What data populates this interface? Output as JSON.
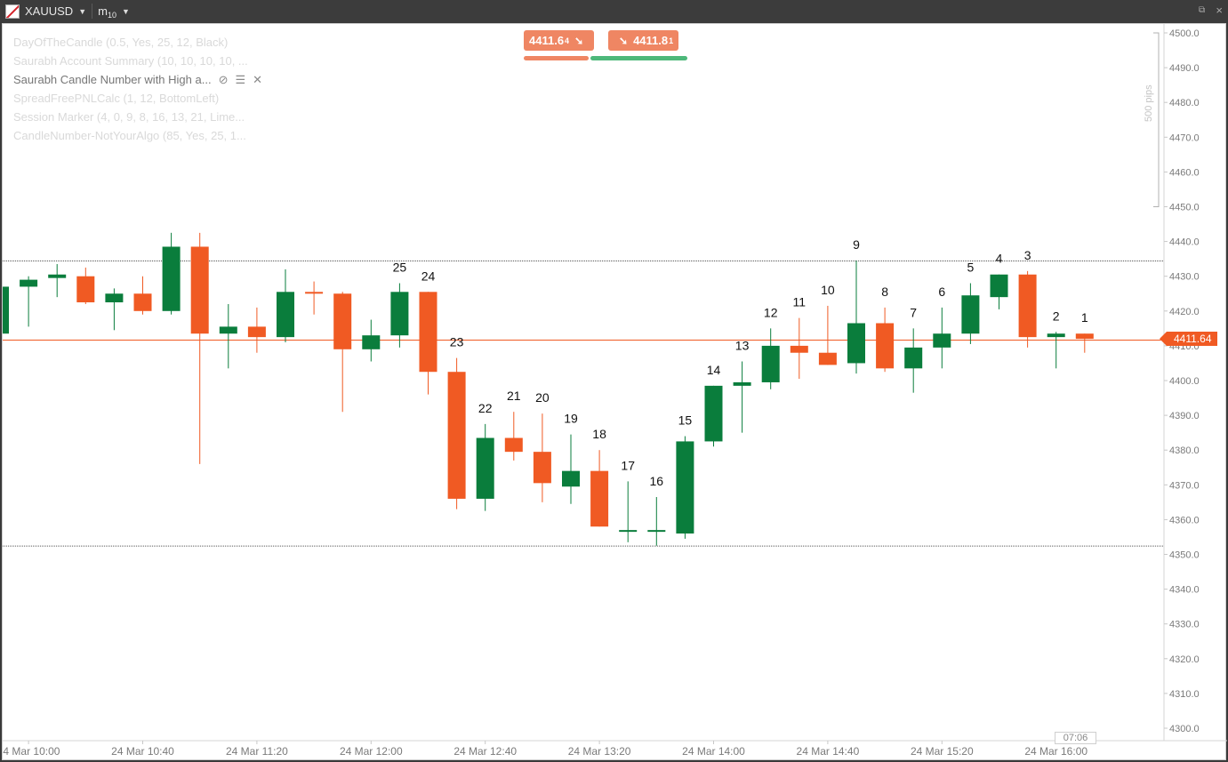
{
  "window": {
    "symbol": "XAUUSD",
    "timeframe_label": "m",
    "timeframe_sub": "10"
  },
  "legend": [
    {
      "text": "DayOfTheCandle (0.5, Yes, 25, 12, Black)",
      "active": false
    },
    {
      "text": "Saurabh Account Summary (10, 10, 10, 10, ...",
      "active": false
    },
    {
      "text": "Saurabh Candle Number with High a...",
      "active": true
    },
    {
      "text": "SpreadFreePNLCalc (1, 12, BottomLeft)",
      "active": false
    },
    {
      "text": "Session Marker (4, 0, 9, 8, 16, 13, 21, Lime...",
      "active": false
    },
    {
      "text": "CandleNumber-NotYourAlgo (85, Yes, 25, 1...",
      "active": false
    }
  ],
  "trade": {
    "sell_price": "4411.6",
    "sell_small": "4",
    "buy_price": "4411.8",
    "buy_small": "1"
  },
  "current_price": "4411.64",
  "time_remaining": "07:06",
  "pips_label": "500 pips",
  "colors": {
    "bull": "#0a7d3c",
    "bear": "#f05a23",
    "price_line": "#f05a23"
  },
  "chart_data": {
    "type": "candlestick",
    "y_range": [
      4300,
      4500
    ],
    "y_ticks": [
      "4500.0",
      "4490.0",
      "4480.0",
      "4470.0",
      "4460.0",
      "4450.0",
      "4440.0",
      "4430.0",
      "4420.0",
      "4410.0",
      "4400.0",
      "4390.0",
      "4380.0",
      "4370.0",
      "4360.0",
      "4350.0",
      "4340.0",
      "4330.0",
      "4320.0",
      "4310.0",
      "4300.0"
    ],
    "x_labels": [
      "24 Mar 10:00",
      "24 Mar 10:40",
      "24 Mar 11:20",
      "24 Mar 12:00",
      "24 Mar 12:40",
      "24 Mar 13:20",
      "24 Mar 14:00",
      "24 Mar 14:40",
      "24 Mar 15:20",
      "24 Mar 16:00"
    ],
    "h_lines": [
      4434.4,
      4352.4
    ],
    "candles": [
      {
        "o": 4413.5,
        "h": 4427.0,
        "l": 4413.0,
        "c": 4427.0,
        "n": ""
      },
      {
        "o": 4427.0,
        "h": 4430.0,
        "l": 4415.5,
        "c": 4429.0,
        "n": ""
      },
      {
        "o": 4429.5,
        "h": 4433.5,
        "l": 4424.0,
        "c": 4430.5,
        "n": ""
      },
      {
        "o": 4430.0,
        "h": 4432.5,
        "l": 4422.0,
        "c": 4422.5,
        "n": ""
      },
      {
        "o": 4422.5,
        "h": 4426.5,
        "l": 4414.5,
        "c": 4425.0,
        "n": ""
      },
      {
        "o": 4425.0,
        "h": 4430.0,
        "l": 4419.0,
        "c": 4420.0,
        "n": ""
      },
      {
        "o": 4420.0,
        "h": 4442.5,
        "l": 4419.0,
        "c": 4438.5,
        "n": ""
      },
      {
        "o": 4438.5,
        "h": 4442.5,
        "l": 4376.0,
        "c": 4413.5,
        "n": ""
      },
      {
        "o": 4413.5,
        "h": 4422.0,
        "l": 4403.5,
        "c": 4415.5,
        "n": ""
      },
      {
        "o": 4415.5,
        "h": 4421.0,
        "l": 4408.0,
        "c": 4412.5,
        "n": ""
      },
      {
        "o": 4412.5,
        "h": 4432.0,
        "l": 4411.0,
        "c": 4425.5,
        "n": ""
      },
      {
        "o": 4425.5,
        "h": 4428.5,
        "l": 4419.0,
        "c": 4425.0,
        "n": ""
      },
      {
        "o": 4425.0,
        "h": 4425.5,
        "l": 4391.0,
        "c": 4409.0,
        "n": ""
      },
      {
        "o": 4409.0,
        "h": 4417.5,
        "l": 4405.5,
        "c": 4413.0,
        "n": ""
      },
      {
        "o": 4413.0,
        "h": 4428.0,
        "l": 4409.5,
        "c": 4425.5,
        "n": "25"
      },
      {
        "o": 4425.5,
        "h": 4425.5,
        "l": 4396.0,
        "c": 4402.5,
        "n": "24"
      },
      {
        "o": 4402.5,
        "h": 4406.5,
        "l": 4363.0,
        "c": 4366.0,
        "n": "23"
      },
      {
        "o": 4366.0,
        "h": 4387.5,
        "l": 4362.5,
        "c": 4383.5,
        "n": "22"
      },
      {
        "o": 4383.5,
        "h": 4391.0,
        "l": 4377.0,
        "c": 4379.5,
        "n": "21"
      },
      {
        "o": 4379.5,
        "h": 4390.5,
        "l": 4365.0,
        "c": 4370.5,
        "n": "20"
      },
      {
        "o": 4369.5,
        "h": 4384.5,
        "l": 4364.5,
        "c": 4374.0,
        "n": "19"
      },
      {
        "o": 4374.0,
        "h": 4380.0,
        "l": 4358.0,
        "c": 4358.0,
        "n": "18"
      },
      {
        "o": 4357.0,
        "h": 4371.0,
        "l": 4353.5,
        "c": 4357.0,
        "n": "17"
      },
      {
        "o": 4357.0,
        "h": 4366.5,
        "l": 4352.5,
        "c": 4357.0,
        "n": "16"
      },
      {
        "o": 4356.0,
        "h": 4384.0,
        "l": 4354.5,
        "c": 4382.5,
        "n": "15"
      },
      {
        "o": 4382.5,
        "h": 4398.5,
        "l": 4381.0,
        "c": 4398.5,
        "n": "14"
      },
      {
        "o": 4398.5,
        "h": 4405.5,
        "l": 4385.0,
        "c": 4399.5,
        "n": "13"
      },
      {
        "o": 4399.5,
        "h": 4415.0,
        "l": 4397.5,
        "c": 4410.0,
        "n": "12"
      },
      {
        "o": 4410.0,
        "h": 4418.0,
        "l": 4400.5,
        "c": 4408.0,
        "n": "11"
      },
      {
        "o": 4408.0,
        "h": 4421.5,
        "l": 4404.5,
        "c": 4404.5,
        "n": "10"
      },
      {
        "o": 4405.0,
        "h": 4434.5,
        "l": 4402.0,
        "c": 4416.5,
        "n": "9"
      },
      {
        "o": 4416.5,
        "h": 4421.0,
        "l": 4402.5,
        "c": 4403.5,
        "n": "8"
      },
      {
        "o": 4403.5,
        "h": 4415.0,
        "l": 4396.5,
        "c": 4409.5,
        "n": "7"
      },
      {
        "o": 4409.5,
        "h": 4421.0,
        "l": 4403.5,
        "c": 4413.5,
        "n": "6"
      },
      {
        "o": 4413.5,
        "h": 4428.0,
        "l": 4410.5,
        "c": 4424.5,
        "n": "5"
      },
      {
        "o": 4424.0,
        "h": 4430.5,
        "l": 4420.5,
        "c": 4430.5,
        "n": "4"
      },
      {
        "o": 4430.5,
        "h": 4431.5,
        "l": 4409.5,
        "c": 4412.5,
        "n": "3"
      },
      {
        "o": 4412.5,
        "h": 4414.0,
        "l": 4403.5,
        "c": 4413.5,
        "n": "2"
      },
      {
        "o": 4413.5,
        "h": 4413.5,
        "l": 4408.0,
        "c": 4412.0,
        "n": "1"
      }
    ]
  }
}
